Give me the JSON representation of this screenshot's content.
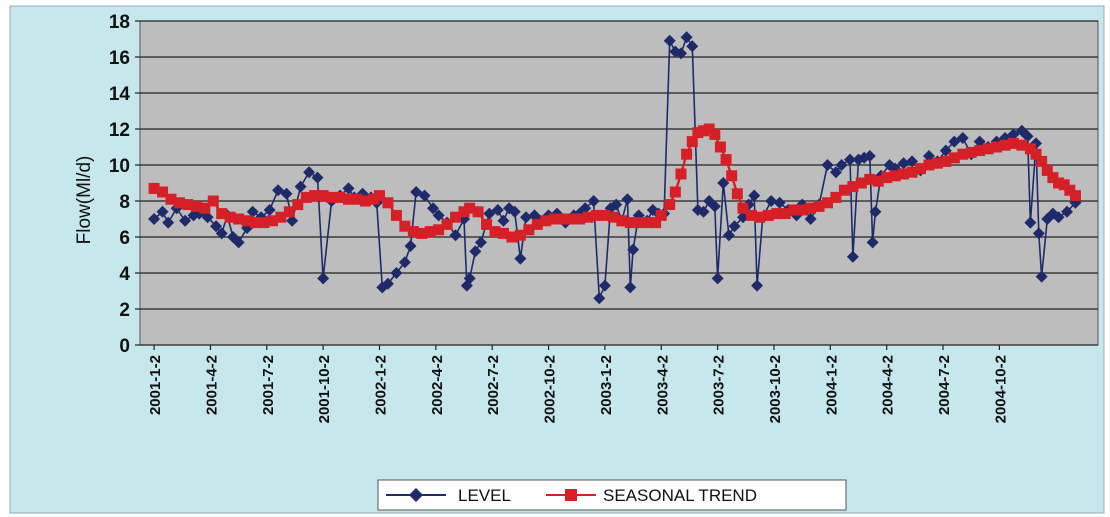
{
  "chart_data": {
    "type": "line",
    "title": "",
    "xlabel": "",
    "ylabel": "Flow(Ml/d)",
    "ylim": [
      0,
      18
    ],
    "yticks": [
      "0",
      "2",
      "4",
      "6",
      "8",
      "10",
      "12",
      "14",
      "16",
      "18"
    ],
    "xticks": [
      "2001-1-2",
      "2001-4-2",
      "2001-7-2",
      "2001-10-2",
      "2002-1-2",
      "2002-4-2",
      "2002-7-2",
      "2002-10-2",
      "2003-1-2",
      "2003-4-2",
      "2003-7-2",
      "2003-10-2",
      "2004-1-2",
      "2004-4-2",
      "2004-7-2",
      "2004-10-2"
    ],
    "grid": true,
    "legend_position": "bottom",
    "plot_background": "#bdbdbd",
    "chart_background": "#c6e7ec",
    "series": [
      {
        "name": "LEVEL",
        "color": "#1f2a6b",
        "marker": "diamond",
        "points": [
          [
            0.0,
            7.0
          ],
          [
            0.3,
            7.4
          ],
          [
            0.5,
            6.8
          ],
          [
            0.8,
            7.6
          ],
          [
            1.1,
            6.9
          ],
          [
            1.4,
            7.2
          ],
          [
            1.6,
            7.3
          ],
          [
            1.9,
            7.1
          ],
          [
            2.2,
            6.6
          ],
          [
            2.4,
            6.2
          ],
          [
            2.6,
            7.2
          ],
          [
            2.8,
            6.0
          ],
          [
            3.0,
            5.7
          ],
          [
            3.3,
            6.5
          ],
          [
            3.5,
            7.4
          ],
          [
            3.8,
            7.1
          ],
          [
            4.1,
            7.5
          ],
          [
            4.4,
            8.6
          ],
          [
            4.7,
            8.4
          ],
          [
            4.9,
            6.9
          ],
          [
            5.2,
            8.8
          ],
          [
            5.5,
            9.6
          ],
          [
            5.8,
            9.3
          ],
          [
            6.0,
            3.7
          ],
          [
            6.3,
            8.0
          ],
          [
            6.6,
            8.3
          ],
          [
            6.9,
            8.7
          ],
          [
            7.1,
            8.2
          ],
          [
            7.4,
            8.4
          ],
          [
            7.7,
            8.2
          ],
          [
            7.9,
            7.9
          ],
          [
            8.1,
            3.2
          ],
          [
            8.3,
            3.4
          ],
          [
            8.6,
            4.0
          ],
          [
            8.9,
            4.6
          ],
          [
            9.1,
            5.5
          ],
          [
            9.3,
            8.5
          ],
          [
            9.6,
            8.3
          ],
          [
            9.9,
            7.6
          ],
          [
            10.1,
            7.2
          ],
          [
            10.4,
            6.8
          ],
          [
            10.7,
            6.1
          ],
          [
            11.0,
            7.0
          ],
          [
            11.1,
            3.3
          ],
          [
            11.2,
            3.7
          ],
          [
            11.4,
            5.2
          ],
          [
            11.6,
            5.7
          ],
          [
            11.9,
            7.3
          ],
          [
            12.2,
            7.5
          ],
          [
            12.4,
            6.9
          ],
          [
            12.6,
            7.6
          ],
          [
            12.8,
            7.4
          ],
          [
            13.0,
            4.8
          ],
          [
            13.2,
            7.1
          ],
          [
            13.5,
            7.2
          ],
          [
            13.7,
            6.9
          ],
          [
            14.0,
            7.2
          ],
          [
            14.3,
            7.3
          ],
          [
            14.6,
            6.8
          ],
          [
            14.9,
            7.2
          ],
          [
            15.1,
            7.3
          ],
          [
            15.3,
            7.6
          ],
          [
            15.6,
            8.0
          ],
          [
            15.8,
            2.6
          ],
          [
            16.0,
            3.3
          ],
          [
            16.2,
            7.6
          ],
          [
            16.4,
            7.8
          ],
          [
            16.6,
            6.9
          ],
          [
            16.8,
            8.1
          ],
          [
            16.9,
            3.2
          ],
          [
            17.0,
            5.3
          ],
          [
            17.2,
            7.2
          ],
          [
            17.5,
            6.9
          ],
          [
            17.7,
            7.5
          ],
          [
            17.9,
            7.3
          ],
          [
            18.1,
            7.3
          ],
          [
            18.3,
            16.9
          ],
          [
            18.5,
            16.3
          ],
          [
            18.7,
            16.2
          ],
          [
            18.9,
            17.1
          ],
          [
            19.1,
            16.6
          ],
          [
            19.3,
            7.5
          ],
          [
            19.5,
            7.4
          ],
          [
            19.7,
            8.0
          ],
          [
            19.9,
            7.7
          ],
          [
            20.0,
            3.7
          ],
          [
            20.2,
            9.0
          ],
          [
            20.4,
            6.1
          ],
          [
            20.6,
            6.6
          ],
          [
            20.9,
            7.1
          ],
          [
            21.1,
            7.8
          ],
          [
            21.3,
            8.3
          ],
          [
            21.4,
            3.3
          ],
          [
            21.6,
            7.1
          ],
          [
            21.9,
            8.0
          ],
          [
            22.2,
            7.9
          ],
          [
            22.5,
            7.5
          ],
          [
            22.8,
            7.2
          ],
          [
            23.0,
            7.8
          ],
          [
            23.3,
            7.0
          ],
          [
            23.6,
            7.8
          ],
          [
            23.9,
            10.0
          ],
          [
            24.2,
            9.6
          ],
          [
            24.4,
            10.0
          ],
          [
            24.7,
            10.3
          ],
          [
            24.8,
            4.9
          ],
          [
            25.0,
            10.3
          ],
          [
            25.2,
            10.4
          ],
          [
            25.4,
            10.5
          ],
          [
            25.5,
            5.7
          ],
          [
            25.6,
            7.4
          ],
          [
            25.8,
            9.4
          ],
          [
            26.1,
            10.0
          ],
          [
            26.3,
            9.8
          ],
          [
            26.6,
            10.1
          ],
          [
            26.9,
            10.2
          ],
          [
            27.2,
            9.7
          ],
          [
            27.5,
            10.5
          ],
          [
            27.8,
            10.2
          ],
          [
            28.1,
            10.8
          ],
          [
            28.4,
            11.3
          ],
          [
            28.7,
            11.5
          ],
          [
            29.0,
            10.6
          ],
          [
            29.3,
            11.3
          ],
          [
            29.6,
            11.0
          ],
          [
            29.9,
            11.3
          ],
          [
            30.2,
            11.5
          ],
          [
            30.5,
            11.7
          ],
          [
            30.8,
            11.9
          ],
          [
            31.0,
            11.6
          ],
          [
            31.1,
            6.8
          ],
          [
            31.3,
            11.2
          ],
          [
            31.4,
            6.2
          ],
          [
            31.5,
            3.8
          ],
          [
            31.7,
            7.0
          ],
          [
            31.9,
            7.3
          ],
          [
            32.1,
            7.1
          ],
          [
            32.4,
            7.4
          ],
          [
            32.7,
            7.9
          ]
        ]
      },
      {
        "name": "SEASONAL TREND",
        "color": "#d62028",
        "marker": "square",
        "points": [
          [
            0.0,
            8.7
          ],
          [
            0.3,
            8.5
          ],
          [
            0.6,
            8.1
          ],
          [
            0.9,
            7.9
          ],
          [
            1.2,
            7.8
          ],
          [
            1.5,
            7.7
          ],
          [
            1.8,
            7.6
          ],
          [
            2.1,
            8.0
          ],
          [
            2.4,
            7.3
          ],
          [
            2.7,
            7.1
          ],
          [
            3.0,
            7.0
          ],
          [
            3.3,
            6.9
          ],
          [
            3.6,
            6.8
          ],
          [
            3.9,
            6.8
          ],
          [
            4.2,
            6.9
          ],
          [
            4.5,
            7.1
          ],
          [
            4.8,
            7.4
          ],
          [
            5.1,
            7.8
          ],
          [
            5.4,
            8.2
          ],
          [
            5.7,
            8.3
          ],
          [
            6.0,
            8.3
          ],
          [
            6.3,
            8.2
          ],
          [
            6.6,
            8.2
          ],
          [
            6.9,
            8.1
          ],
          [
            7.2,
            8.1
          ],
          [
            7.5,
            8.0
          ],
          [
            7.8,
            8.1
          ],
          [
            8.0,
            8.3
          ],
          [
            8.3,
            7.9
          ],
          [
            8.6,
            7.2
          ],
          [
            8.9,
            6.6
          ],
          [
            9.2,
            6.3
          ],
          [
            9.5,
            6.2
          ],
          [
            9.8,
            6.3
          ],
          [
            10.1,
            6.4
          ],
          [
            10.4,
            6.7
          ],
          [
            10.7,
            7.1
          ],
          [
            11.0,
            7.4
          ],
          [
            11.2,
            7.6
          ],
          [
            11.5,
            7.4
          ],
          [
            11.8,
            6.7
          ],
          [
            12.1,
            6.3
          ],
          [
            12.4,
            6.2
          ],
          [
            12.7,
            6.0
          ],
          [
            13.0,
            6.1
          ],
          [
            13.3,
            6.4
          ],
          [
            13.6,
            6.7
          ],
          [
            13.9,
            6.9
          ],
          [
            14.2,
            7.0
          ],
          [
            14.5,
            7.0
          ],
          [
            14.8,
            7.0
          ],
          [
            15.1,
            7.0
          ],
          [
            15.4,
            7.1
          ],
          [
            15.7,
            7.2
          ],
          [
            16.0,
            7.2
          ],
          [
            16.3,
            7.1
          ],
          [
            16.6,
            6.9
          ],
          [
            16.9,
            6.8
          ],
          [
            17.2,
            6.8
          ],
          [
            17.5,
            6.8
          ],
          [
            17.8,
            6.8
          ],
          [
            18.0,
            7.2
          ],
          [
            18.3,
            7.8
          ],
          [
            18.5,
            8.5
          ],
          [
            18.7,
            9.5
          ],
          [
            18.9,
            10.6
          ],
          [
            19.1,
            11.3
          ],
          [
            19.3,
            11.8
          ],
          [
            19.5,
            11.9
          ],
          [
            19.7,
            12.0
          ],
          [
            19.9,
            11.7
          ],
          [
            20.1,
            11.0
          ],
          [
            20.3,
            10.3
          ],
          [
            20.5,
            9.4
          ],
          [
            20.7,
            8.4
          ],
          [
            20.9,
            7.6
          ],
          [
            21.2,
            7.2
          ],
          [
            21.5,
            7.1
          ],
          [
            21.8,
            7.2
          ],
          [
            22.1,
            7.3
          ],
          [
            22.4,
            7.3
          ],
          [
            22.7,
            7.5
          ],
          [
            23.0,
            7.5
          ],
          [
            23.3,
            7.6
          ],
          [
            23.6,
            7.7
          ],
          [
            23.9,
            7.9
          ],
          [
            24.2,
            8.2
          ],
          [
            24.5,
            8.6
          ],
          [
            24.8,
            8.8
          ],
          [
            25.1,
            9.0
          ],
          [
            25.4,
            9.2
          ],
          [
            25.7,
            9.1
          ],
          [
            26.0,
            9.3
          ],
          [
            26.3,
            9.4
          ],
          [
            26.6,
            9.5
          ],
          [
            26.9,
            9.6
          ],
          [
            27.2,
            9.8
          ],
          [
            27.5,
            10.0
          ],
          [
            27.8,
            10.1
          ],
          [
            28.1,
            10.2
          ],
          [
            28.4,
            10.4
          ],
          [
            28.7,
            10.6
          ],
          [
            29.0,
            10.7
          ],
          [
            29.3,
            10.8
          ],
          [
            29.6,
            10.9
          ],
          [
            29.9,
            11.0
          ],
          [
            30.2,
            11.1
          ],
          [
            30.5,
            11.2
          ],
          [
            30.8,
            11.1
          ],
          [
            31.1,
            10.9
          ],
          [
            31.3,
            10.6
          ],
          [
            31.5,
            10.2
          ],
          [
            31.7,
            9.7
          ],
          [
            31.9,
            9.3
          ],
          [
            32.1,
            9.0
          ],
          [
            32.3,
            8.9
          ],
          [
            32.5,
            8.6
          ],
          [
            32.7,
            8.3
          ]
        ]
      }
    ]
  }
}
